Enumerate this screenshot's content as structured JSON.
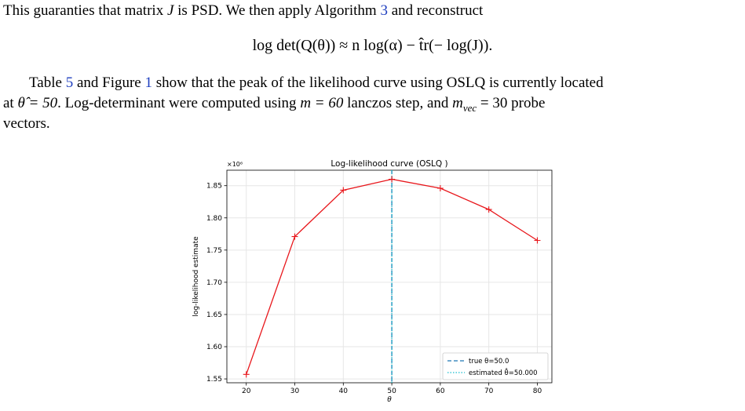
{
  "text": {
    "line1_a": "This guaranties that matrix ",
    "line1_var": "J",
    "line1_b": " is PSD. We then apply Algorithm ",
    "line1_ref": "3",
    "line1_c": " and reconstruct",
    "equation": "log det(Q(θ)) ≈ n log(α) − t̂r(− log(J)).",
    "line3_a": "Table ",
    "line3_ref1": "5",
    "line3_b": " and Figure ",
    "line3_ref2": "1",
    "line3_c": " show that the peak of the likelihood curve using OSLQ is currently located",
    "line4_a": "at ",
    "line4_theta": "θ̂ = 50",
    "line4_b": ". Log-determinant were computed using ",
    "line4_m": "m = 60",
    "line4_c": " lanczos step, and ",
    "line4_mvec": "m",
    "line4_mvec_sub": "vec",
    "line4_mvec_eq": " = 30",
    "line4_d": " probe",
    "line5": "vectors."
  },
  "colors": {
    "link": "#1f3fbf",
    "curve": "#e8161b",
    "true_line": "#1f77b4",
    "estimated_line": "#17becf"
  },
  "chart_data": {
    "type": "line",
    "title": "Log-likelihood curve (OSLQ )",
    "xlabel": "θ",
    "ylabel": "log-likelihood estimate",
    "y_multiplier": "×10⁶",
    "x": [
      20,
      30,
      40,
      50,
      60,
      70,
      80
    ],
    "series": [
      {
        "values": [
          1.557,
          1.771,
          1.843,
          1.86,
          1.846,
          1.813,
          1.765
        ],
        "marker": "+",
        "color": "#e8161b"
      }
    ],
    "x_ticks": [
      20,
      30,
      40,
      50,
      60,
      70,
      80
    ],
    "y_ticks": [
      1.55,
      1.6,
      1.65,
      1.7,
      1.75,
      1.8,
      1.85
    ],
    "y_tick_labels": [
      "1.55",
      "1.60",
      "1.65",
      "1.70",
      "1.75",
      "1.80",
      "1.85"
    ],
    "xlim": [
      16,
      83
    ],
    "ylim": [
      1.544,
      1.874
    ],
    "vlines": [
      {
        "x": 50.0,
        "style": "dashed",
        "color": "#1f77b4",
        "label": "true θ=50.0"
      },
      {
        "x": 50.0,
        "style": "dotted",
        "color": "#17becf",
        "label": "estimated θ̂=50.000"
      }
    ],
    "grid": true,
    "legend_position": "lower-right"
  }
}
